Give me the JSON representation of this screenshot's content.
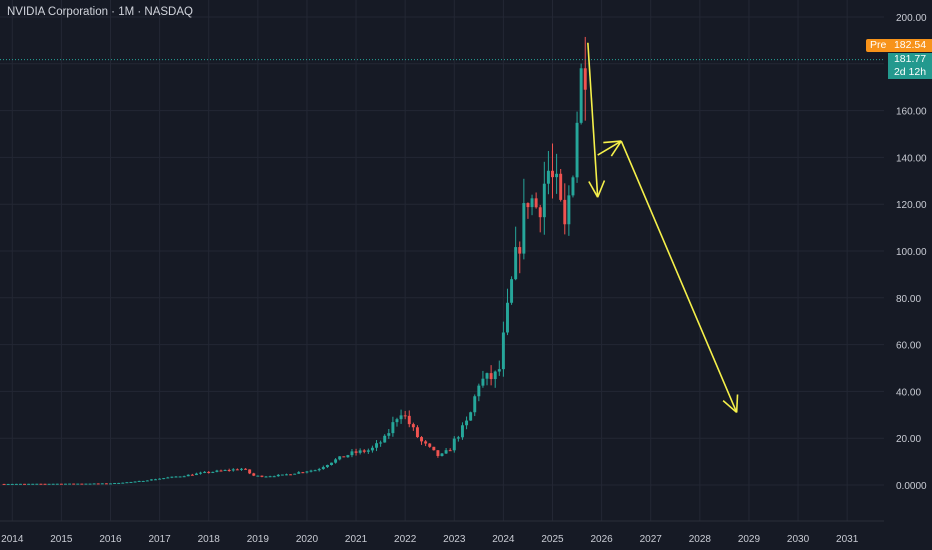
{
  "header": {
    "title": "NVIDIA Corporation · 1M · NASDAQ"
  },
  "price_tags": {
    "pre_label": "Pre",
    "pre_value": "182.54",
    "last_value": "181.77",
    "countdown": "2d 12h"
  },
  "colors": {
    "background": "#161a25",
    "up": "#26a69a",
    "down": "#ef5350",
    "grid": "#232734",
    "annotation": "#f5f04a",
    "pre_tag": "#f7931a",
    "last_tag": "#23998e"
  },
  "chart_data": {
    "type": "candlestick",
    "interval": "monthly",
    "y_axis": {
      "min": 0,
      "max": 200,
      "ticks": [
        0,
        20,
        40,
        60,
        80,
        100,
        120,
        140,
        160,
        180,
        200
      ],
      "tick_labels": [
        "0.0000",
        "20.00",
        "40.00",
        "60.00",
        "80.00",
        "100.00",
        "120.00",
        "140.00",
        "160.00",
        "",
        "200.00"
      ]
    },
    "x_axis": {
      "min": 2013.75,
      "max": 2031.75,
      "ticks": [
        2014,
        2015,
        2016,
        2017,
        2018,
        2019,
        2020,
        2021,
        2022,
        2023,
        2024,
        2025,
        2026,
        2027,
        2028,
        2029,
        2030,
        2031
      ],
      "tick_labels": [
        "2014",
        "2015",
        "2016",
        "2017",
        "2018",
        "2019",
        "2020",
        "2021",
        "2022",
        "2023",
        "2024",
        "2025",
        "2026",
        "2027",
        "2028",
        "2029",
        "2030",
        "2031"
      ]
    },
    "grid": true,
    "price_line": 181.77,
    "anchors": [
      [
        2013.75,
        0.45
      ],
      [
        2014.5,
        0.5
      ],
      [
        2015.0,
        0.55
      ],
      [
        2015.5,
        0.6
      ],
      [
        2016.0,
        0.7
      ],
      [
        2016.5,
        1.4
      ],
      [
        2016.9,
        2.5
      ],
      [
        2017.5,
        4.0
      ],
      [
        2018.0,
        5.5
      ],
      [
        2018.7,
        7.0
      ],
      [
        2018.9,
        4.0
      ],
      [
        2019.1,
        3.7
      ],
      [
        2019.5,
        4.2
      ],
      [
        2020.0,
        6.0
      ],
      [
        2020.2,
        6.5
      ],
      [
        2020.5,
        10.0
      ],
      [
        2020.9,
        13.5
      ],
      [
        2021.3,
        15.0
      ],
      [
        2021.6,
        20.0
      ],
      [
        2021.9,
        32.0
      ],
      [
        2022.0,
        29.0
      ],
      [
        2022.3,
        19.0
      ],
      [
        2022.7,
        12.0
      ],
      [
        2022.9,
        15.0
      ],
      [
        2023.0,
        19.0
      ],
      [
        2023.3,
        28.0
      ],
      [
        2023.5,
        44.0
      ],
      [
        2023.9,
        47.0
      ],
      [
        2024.0,
        62.0
      ],
      [
        2024.2,
        90.0
      ],
      [
        2024.5,
        124.0
      ],
      [
        2024.7,
        118.0
      ],
      [
        2024.9,
        135.0
      ],
      [
        2025.1,
        124.0
      ],
      [
        2025.25,
        108.0
      ],
      [
        2025.4,
        135.0
      ],
      [
        2025.5,
        158.0
      ],
      [
        2025.6,
        178.0
      ],
      [
        2025.67,
        181.77
      ]
    ],
    "annotations": [
      {
        "type": "arrow",
        "from": [
          2025.72,
          189.0
        ],
        "to": [
          2025.92,
          123.0
        ]
      },
      {
        "type": "arrow",
        "from": [
          2025.92,
          141.0
        ],
        "to": [
          2026.4,
          147.0
        ]
      },
      {
        "type": "arrow",
        "from": [
          2026.4,
          147.0
        ],
        "to": [
          2028.75,
          31.0
        ]
      }
    ]
  }
}
